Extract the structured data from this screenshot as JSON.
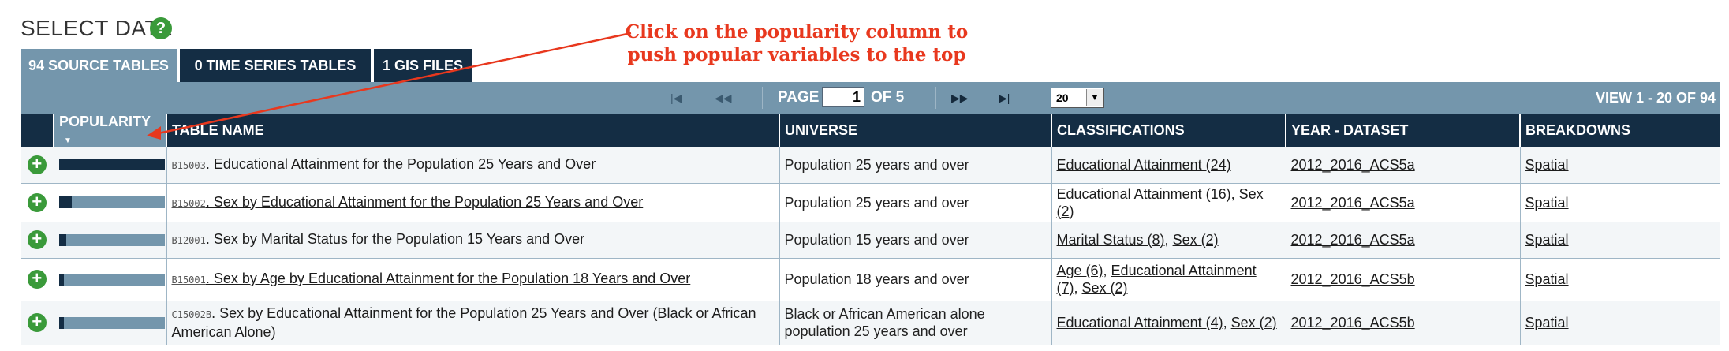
{
  "header": {
    "title": "SELECT DATA",
    "help_icon": "?"
  },
  "annotation": {
    "line1": "Click on the popularity column to",
    "line2": "push popular variables to the top"
  },
  "tabs": [
    {
      "label": "94 SOURCE TABLES",
      "active": true
    },
    {
      "label": "0 TIME SERIES TABLES",
      "active": false
    },
    {
      "label": "1 GIS FILES",
      "active": false
    }
  ],
  "pager": {
    "page_label": "PAGE",
    "page_value": "1",
    "of_label": "OF 5",
    "per_page": "20",
    "view_label": "VIEW 1 - 20 OF 94"
  },
  "columns": [
    "POPULARITY",
    "TABLE NAME",
    "UNIVERSE",
    "CLASSIFICATIONS",
    "YEAR - DATASET",
    "BREAKDOWNS"
  ],
  "rows": [
    {
      "popularity": 1.0,
      "code": "B15003",
      "name": ". Educational Attainment for the Population 25 Years and Over",
      "universe": "Population 25 years and over",
      "class1": "Educational Attainment (24)",
      "class2": "",
      "class3": "",
      "year": "2012_2016_ACS5a",
      "breakdown": "Spatial"
    },
    {
      "popularity": 0.12,
      "code": "B15002",
      "name": ". Sex by Educational Attainment for the Population 25 Years and Over",
      "universe": "Population 25 years and over",
      "class1": "Educational Attainment (16)",
      "class2": "Sex (2)",
      "class3": "",
      "year": "2012_2016_ACS5a",
      "breakdown": "Spatial"
    },
    {
      "popularity": 0.07,
      "code": "B12001",
      "name": ". Sex by Marital Status for the Population 15 Years and Over",
      "universe": "Population 15 years and over",
      "class1": "Marital Status (8)",
      "class2": "Sex (2)",
      "class3": "",
      "year": "2012_2016_ACS5a",
      "breakdown": "Spatial"
    },
    {
      "popularity": 0.05,
      "code": "B15001",
      "name": ". Sex by Age by Educational Attainment for the Population 18 Years and Over",
      "universe": "Population 18 years and over",
      "class1": "Age (6)",
      "class2": "Educational Attainment (7)",
      "class3": "Sex (2)",
      "year": "2012_2016_ACS5b",
      "breakdown": "Spatial"
    },
    {
      "popularity": 0.05,
      "code": "C15002B",
      "name": ". Sex by Educational Attainment for the Population 25 Years and Over (Black or African American Alone)",
      "universe": "Black or African American alone population 25 years and over",
      "class1": "Educational Attainment (4)",
      "class2": "Sex (2)",
      "class3": "",
      "year": "2012_2016_ACS5b",
      "breakdown": "Spatial"
    }
  ],
  "colors": {
    "dark": "#142d44",
    "steel": "#7496ac",
    "green": "#3a9a3a",
    "annotation": "#e8381e"
  }
}
